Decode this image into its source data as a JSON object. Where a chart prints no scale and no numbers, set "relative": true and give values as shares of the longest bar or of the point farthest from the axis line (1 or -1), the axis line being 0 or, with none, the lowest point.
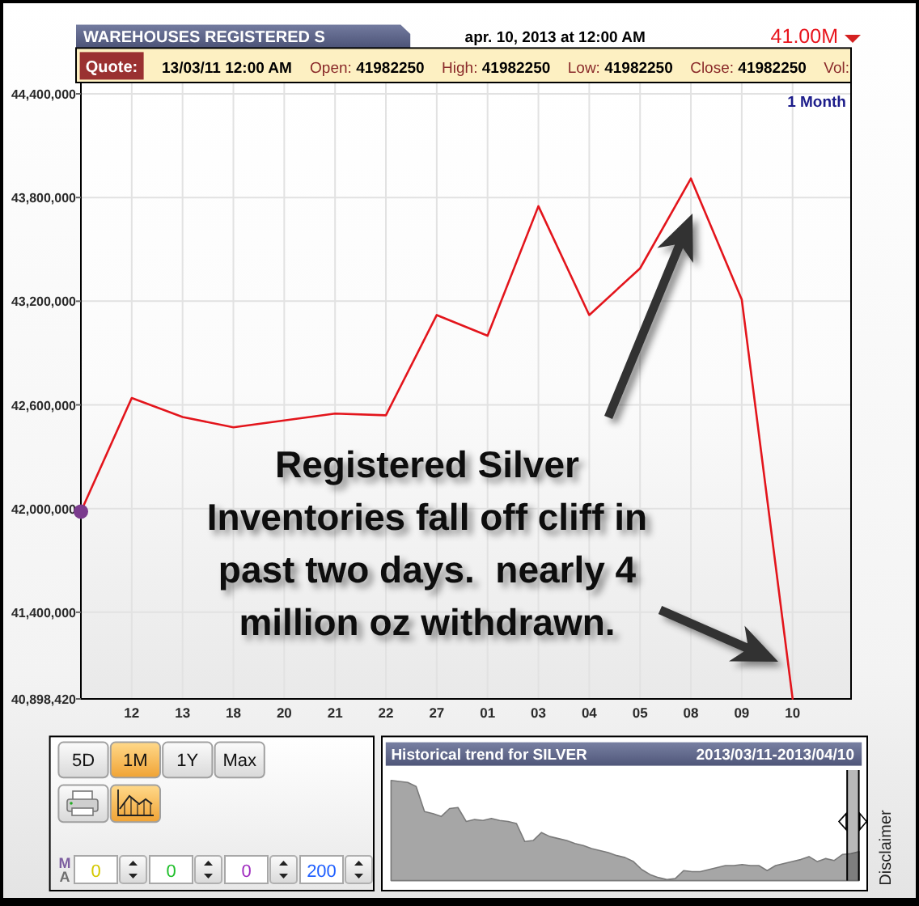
{
  "chart_data": [
    {
      "type": "line",
      "title": "WAREHOUSES REGISTERED S",
      "subtitle": "apr. 10, 2013 at 12:00 AM",
      "annotations": [
        "41.00M",
        "Quote:",
        "13/03/11 12:00 AM",
        "Open: 41982250",
        "High: 41982250",
        "Low: 41982250",
        "Close: 41982250",
        "Vol:",
        "1 Month",
        "Registered Silver Inventories fall off cliff in past two days.  nearly 4 million oz withdrawn."
      ],
      "categories": [
        null,
        "12",
        "13",
        "18",
        "20",
        "21",
        "22",
        "27",
        "01",
        "03",
        "04",
        "05",
        "08",
        "09",
        "10"
      ],
      "series": [
        {
          "type": "line",
          "color": "#e3151c",
          "values": [
            41982250,
            42640000,
            42530000,
            42470000,
            42510000,
            42550000,
            42540000,
            43120000,
            43000000,
            43750000,
            43120000,
            43390000,
            43910000,
            43210000,
            40900000
          ]
        },
        {
          "type": "scatter",
          "color": "#7b3b8e",
          "values": [
            41982250,
            null,
            null,
            null,
            null,
            null,
            null,
            null,
            null,
            null,
            null,
            null,
            null,
            null,
            null
          ]
        }
      ],
      "ylim": [
        40898420,
        44400000
      ],
      "yticks": [
        {
          "value": 40898420,
          "label": "40,898,420"
        },
        {
          "value": 41400000,
          "label": "41,400,000"
        },
        {
          "value": 42000000,
          "label": "42,000,000"
        },
        {
          "value": 42600000,
          "label": "42,600,000"
        },
        {
          "value": 43200000,
          "label": "43,200,000"
        },
        {
          "value": 43800000,
          "label": "43,800,000"
        },
        {
          "value": 44400000,
          "label": "44,400,000"
        }
      ],
      "grid": true
    },
    {
      "type": "other",
      "annotations": [
        "5D",
        "1M",
        "1Y",
        "Max",
        "MA",
        "0",
        "0",
        "0",
        "200"
      ]
    },
    {
      "type": "area",
      "title": "Historical trend for SILVER",
      "subtitle": "2013/03/11-2013/04/10",
      "annotations": [
        "Disclaimer"
      ],
      "relative": true,
      "categories": [
        null,
        null,
        null,
        null,
        null,
        null,
        null,
        null,
        null,
        null,
        null,
        null,
        null,
        null,
        null,
        null,
        null,
        null,
        null,
        null,
        null,
        null,
        null,
        null,
        null,
        null,
        null,
        null,
        null,
        null,
        null,
        null,
        null,
        null,
        null,
        null,
        null,
        null,
        null,
        null,
        null,
        null,
        null,
        null,
        null,
        null,
        null,
        null,
        null,
        null,
        null,
        null,
        null,
        null,
        null,
        null,
        null
      ],
      "series": [
        {
          "color": "#a6a6a6",
          "values": [
            1.0,
            0.99,
            0.98,
            0.94,
            0.69,
            0.67,
            0.64,
            0.72,
            0.73,
            0.59,
            0.61,
            0.6,
            0.62,
            0.6,
            0.59,
            0.57,
            0.39,
            0.4,
            0.48,
            0.44,
            0.42,
            0.4,
            0.37,
            0.35,
            0.32,
            0.3,
            0.28,
            0.25,
            0.23,
            0.19,
            0.11,
            0.06,
            0.03,
            0.01,
            0.02,
            0.1,
            0.09,
            0.09,
            0.11,
            0.13,
            0.15,
            0.15,
            0.16,
            0.15,
            0.15,
            0.1,
            0.15,
            0.17,
            0.19,
            0.21,
            0.24,
            0.19,
            0.22,
            0.2,
            0.26,
            0.27,
            0.29
          ]
        }
      ]
    }
  ]
}
